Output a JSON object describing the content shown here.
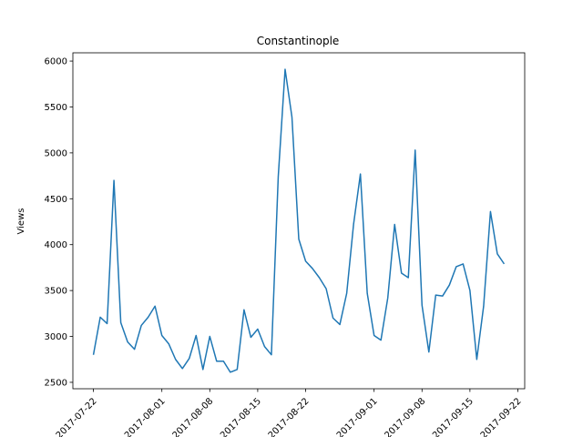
{
  "chart_data": {
    "type": "line",
    "title": "Constantinople",
    "xlabel": "",
    "ylabel": "Views",
    "ylim": [
      2430,
      6090
    ],
    "xlim": [
      "2017-07-19",
      "2017-09-23"
    ],
    "grid": false,
    "line_color": "#1f77b4",
    "yticks": [
      2500,
      3000,
      3500,
      4000,
      4500,
      5000,
      5500,
      6000
    ],
    "xticks": [
      {
        "date": "2017-07-22",
        "label": "2017-07-22"
      },
      {
        "date": "2017-08-01",
        "label": "2017-08-01"
      },
      {
        "date": "2017-08-08",
        "label": "2017-08-08"
      },
      {
        "date": "2017-08-15",
        "label": "2017-08-15"
      },
      {
        "date": "2017-08-22",
        "label": "2017-08-22"
      },
      {
        "date": "2017-09-01",
        "label": "2017-09-01"
      },
      {
        "date": "2017-09-08",
        "label": "2017-09-08"
      },
      {
        "date": "2017-09-15",
        "label": "2017-09-15"
      },
      {
        "date": "2017-09-22",
        "label": "2017-09-22"
      }
    ],
    "series": [
      {
        "x": [
          "2017-07-22",
          "2017-07-23",
          "2017-07-24",
          "2017-07-25",
          "2017-07-26",
          "2017-07-27",
          "2017-07-28",
          "2017-07-29",
          "2017-07-30",
          "2017-07-31",
          "2017-08-01",
          "2017-08-02",
          "2017-08-03",
          "2017-08-04",
          "2017-08-05",
          "2017-08-06",
          "2017-08-07",
          "2017-08-08",
          "2017-08-09",
          "2017-08-10",
          "2017-08-11",
          "2017-08-12",
          "2017-08-13",
          "2017-08-14",
          "2017-08-15",
          "2017-08-16",
          "2017-08-17",
          "2017-08-18",
          "2017-08-19",
          "2017-08-20",
          "2017-08-21",
          "2017-08-22",
          "2017-08-23",
          "2017-08-24",
          "2017-08-25",
          "2017-08-26",
          "2017-08-27",
          "2017-08-28",
          "2017-08-29",
          "2017-08-30",
          "2017-08-31",
          "2017-09-01",
          "2017-09-02",
          "2017-09-03",
          "2017-09-04",
          "2017-09-05",
          "2017-09-06",
          "2017-09-07",
          "2017-09-08",
          "2017-09-09",
          "2017-09-10",
          "2017-09-11",
          "2017-09-12",
          "2017-09-13",
          "2017-09-14",
          "2017-09-15",
          "2017-09-16",
          "2017-09-17",
          "2017-09-18",
          "2017-09-19",
          "2017-09-20"
        ],
        "values": [
          2800,
          3210,
          3140,
          4700,
          3150,
          2940,
          2860,
          3120,
          3210,
          3330,
          3010,
          2920,
          2750,
          2650,
          2760,
          3010,
          2640,
          3000,
          2730,
          2730,
          2610,
          2640,
          3290,
          2990,
          3080,
          2890,
          2800,
          4740,
          5910,
          5390,
          4060,
          3820,
          3740,
          3640,
          3520,
          3200,
          3130,
          3470,
          4220,
          4770,
          3470,
          3010,
          2960,
          3420,
          4220,
          3690,
          3640,
          5030,
          3340,
          2830,
          3450,
          3440,
          3560,
          3760,
          3790,
          3500,
          2750,
          3330,
          4360,
          3900,
          3790
        ]
      }
    ]
  }
}
